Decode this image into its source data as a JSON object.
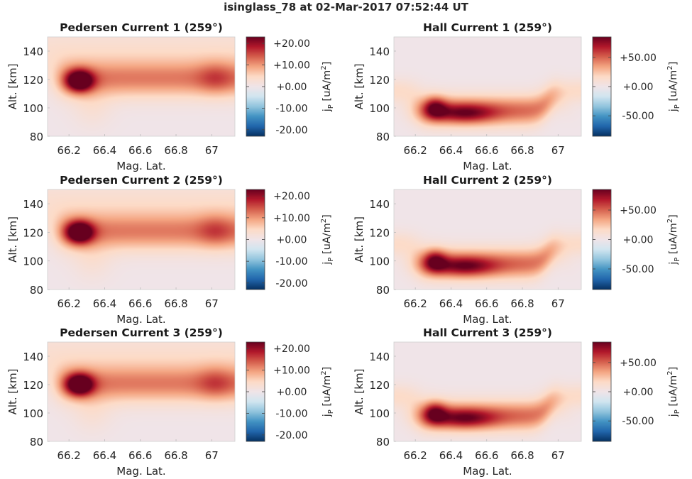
{
  "figure": {
    "title": "isinglass_78 at 02-Mar-2017 07:52:44 UT"
  },
  "chart_data": [
    {
      "type": "heatmap",
      "panel": "pedersen-1",
      "title": "Pedersen Current 1 (259°)",
      "xlabel": "Mag. Lat.",
      "ylabel": "Alt. [km]",
      "xlim": [
        66.08,
        67.13
      ],
      "ylim": [
        80,
        150
      ],
      "xticks": [
        "66.2",
        "66.4",
        "66.6",
        "66.8",
        "67"
      ],
      "yticks": [
        "80",
        "100",
        "120",
        "140"
      ],
      "colorbar": {
        "label": "jP [uA/m2]",
        "clim": [
          -23,
          23
        ],
        "ticks": [
          "+20.00",
          "+10.00",
          "+0.00",
          "-10.00",
          "-20.00"
        ]
      },
      "field": {
        "kind": "pedersen",
        "peak": [
          66.26,
          119,
          22
        ]
      }
    },
    {
      "type": "heatmap",
      "panel": "hall-1",
      "title": "Hall Current 1 (259°)",
      "xlabel": "Mag. Lat.",
      "ylabel": "Alt. [km]",
      "xlim": [
        66.08,
        67.13
      ],
      "ylim": [
        80,
        150
      ],
      "xticks": [
        "66.2",
        "66.4",
        "66.6",
        "66.8",
        "67"
      ],
      "yticks": [
        "80",
        "100",
        "120",
        "140"
      ],
      "colorbar": {
        "label": "jP [uA/m2]",
        "clim": [
          -85,
          85
        ],
        "ticks": [
          "+50.00",
          "+0.00",
          "-50.00"
        ]
      },
      "field": {
        "kind": "hall",
        "peak": [
          66.31,
          100,
          80
        ]
      }
    },
    {
      "type": "heatmap",
      "panel": "pedersen-2",
      "title": "Pedersen Current 2 (259°)",
      "xlabel": "Mag. Lat.",
      "ylabel": "Alt. [km]",
      "xlim": [
        66.08,
        67.13
      ],
      "ylim": [
        80,
        150
      ],
      "xticks": [
        "66.2",
        "66.4",
        "66.6",
        "66.8",
        "67"
      ],
      "yticks": [
        "80",
        "100",
        "120",
        "140"
      ],
      "colorbar": {
        "label": "jP [uA/m2]",
        "clim": [
          -23,
          23
        ],
        "ticks": [
          "+20.00",
          "+10.00",
          "+0.00",
          "-10.00",
          "-20.00"
        ]
      },
      "field": {
        "kind": "pedersen",
        "peak": [
          66.26,
          120,
          22
        ]
      }
    },
    {
      "type": "heatmap",
      "panel": "hall-2",
      "title": "Hall Current 2 (259°)",
      "xlabel": "Mag. Lat.",
      "ylabel": "Alt. [km]",
      "xlim": [
        66.08,
        67.13
      ],
      "ylim": [
        80,
        150
      ],
      "xticks": [
        "66.2",
        "66.4",
        "66.6",
        "66.8",
        "67"
      ],
      "yticks": [
        "80",
        "100",
        "120",
        "140"
      ],
      "colorbar": {
        "label": "jP [uA/m2]",
        "clim": [
          -85,
          85
        ],
        "ticks": [
          "+50.00",
          "+0.00",
          "-50.00"
        ]
      },
      "field": {
        "kind": "hall",
        "peak": [
          66.31,
          100,
          80
        ]
      }
    },
    {
      "type": "heatmap",
      "panel": "pedersen-3",
      "title": "Pedersen Current 3 (259°)",
      "xlabel": "Mag. Lat.",
      "ylabel": "Alt. [km]",
      "xlim": [
        66.08,
        67.13
      ],
      "ylim": [
        80,
        150
      ],
      "xticks": [
        "66.2",
        "66.4",
        "66.6",
        "66.8",
        "67"
      ],
      "yticks": [
        "80",
        "100",
        "120",
        "140"
      ],
      "colorbar": {
        "label": "jP [uA/m2]",
        "clim": [
          -23,
          23
        ],
        "ticks": [
          "+20.00",
          "+10.00",
          "+0.00",
          "-10.00",
          "-20.00"
        ]
      },
      "field": {
        "kind": "pedersen",
        "peak": [
          66.26,
          120,
          22
        ]
      }
    },
    {
      "type": "heatmap",
      "panel": "hall-3",
      "title": "Hall Current 3 (259°)",
      "xlabel": "Mag. Lat.",
      "ylabel": "Alt. [km]",
      "xlim": [
        66.08,
        67.13
      ],
      "ylim": [
        80,
        150
      ],
      "xticks": [
        "66.2",
        "66.4",
        "66.6",
        "66.8",
        "67"
      ],
      "yticks": [
        "80",
        "100",
        "120",
        "140"
      ],
      "colorbar": {
        "label": "jP [uA/m2]",
        "clim": [
          -85,
          85
        ],
        "ticks": [
          "+50.00",
          "+0.00",
          "-50.00"
        ]
      },
      "field": {
        "kind": "hall",
        "peak": [
          66.31,
          100,
          80
        ]
      }
    }
  ],
  "colormap": {
    "name": "diverging blue-white-red",
    "stops": [
      "#053061",
      "#2166ac",
      "#4393c3",
      "#92c5de",
      "#d1e5f0",
      "#f0e4e8",
      "#fddbc7",
      "#f4a582",
      "#d6604d",
      "#b2182b",
      "#67001f"
    ]
  }
}
